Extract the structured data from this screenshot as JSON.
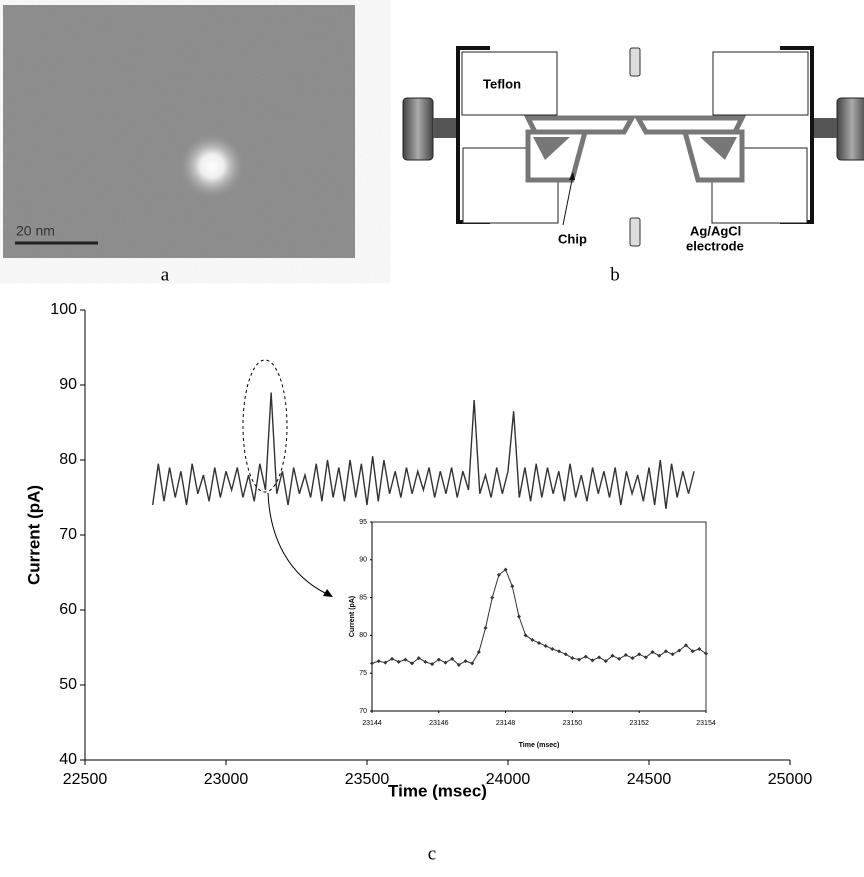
{
  "panels": {
    "image": {
      "scale_bar": "20 nm",
      "label": "a"
    },
    "diagram": {
      "teflon": "Teflon",
      "chip": "Chip",
      "electrode": [
        "Ag/AgCl",
        "electrode"
      ],
      "label": "b"
    },
    "chart_label": "c"
  },
  "chart_data": [
    {
      "type": "line",
      "color": "#333333",
      "xlabel": "Time (msec)",
      "ylabel": "Current (pA)",
      "xlim": [
        22500,
        25000
      ],
      "ylim": [
        40,
        100
      ],
      "xticks": [
        22500,
        23000,
        23500,
        24000,
        24500,
        25000
      ],
      "yticks": [
        40,
        50,
        60,
        70,
        80,
        90,
        100
      ],
      "x": [
        22740,
        22760,
        22780,
        22800,
        22820,
        22840,
        22860,
        22880,
        22900,
        22920,
        22940,
        22960,
        22980,
        23000,
        23020,
        23040,
        23060,
        23080,
        23100,
        23120,
        23140,
        23160,
        23180,
        23200,
        23220,
        23240,
        23260,
        23280,
        23300,
        23320,
        23340,
        23360,
        23380,
        23400,
        23420,
        23440,
        23460,
        23480,
        23500,
        23520,
        23540,
        23560,
        23580,
        23600,
        23620,
        23640,
        23660,
        23680,
        23700,
        23720,
        23740,
        23760,
        23780,
        23800,
        23820,
        23840,
        23860,
        23880,
        23900,
        23920,
        23940,
        23960,
        23980,
        24000,
        24020,
        24040,
        24060,
        24080,
        24100,
        24120,
        24140,
        24160,
        24180,
        24200,
        24220,
        24240,
        24260,
        24280,
        24300,
        24320,
        24340,
        24360,
        24380,
        24400,
        24420,
        24440,
        24460,
        24480,
        24500,
        24520,
        24540,
        24560,
        24580,
        24600,
        24620,
        24640,
        24660
      ],
      "values": [
        74,
        79.5,
        74.5,
        79,
        75,
        78.5,
        74,
        79.5,
        75.5,
        78,
        74.5,
        79,
        75,
        78.5,
        76,
        79,
        75,
        78,
        74.5,
        79.5,
        76,
        89,
        75.5,
        78.5,
        74,
        79,
        75.5,
        78,
        75,
        79.5,
        74.5,
        80,
        75,
        79,
        74.5,
        80,
        75,
        79.5,
        74,
        80.5,
        74.5,
        80,
        75.5,
        78.5,
        75,
        79,
        75.5,
        78.5,
        76,
        79,
        75,
        78.5,
        75.5,
        79,
        75,
        78.5,
        76,
        88,
        75.5,
        78,
        75,
        79,
        75.5,
        78.5,
        86.5,
        75,
        79,
        74.5,
        79.5,
        75,
        79,
        75.5,
        78.5,
        74.5,
        79.5,
        75,
        78,
        74.5,
        79,
        75.5,
        78.5,
        75,
        79,
        74,
        78.5,
        75.5,
        78,
        74.5,
        79,
        74,
        80,
        73.5,
        79.5,
        75,
        78.5,
        75.5,
        78.5
      ]
    },
    {
      "type": "line",
      "color": "#333333",
      "markers": true,
      "box": true,
      "xlabel": "Time (msec)",
      "ylabel": "Current (pA)",
      "xlim": [
        23144,
        23154
      ],
      "ylim": [
        70,
        95
      ],
      "xticks": [
        23144,
        23146,
        23148,
        23150,
        23152,
        23154
      ],
      "yticks": [
        70,
        75,
        80,
        85,
        90,
        95
      ],
      "x": [
        23144,
        23144.2,
        23144.4,
        23144.6,
        23144.8,
        23145,
        23145.2,
        23145.4,
        23145.6,
        23145.8,
        23146,
        23146.2,
        23146.4,
        23146.6,
        23146.8,
        23147,
        23147.2,
        23147.4,
        23147.6,
        23147.8,
        23148,
        23148.2,
        23148.4,
        23148.6,
        23148.8,
        23149,
        23149.2,
        23149.4,
        23149.6,
        23149.8,
        23150,
        23150.2,
        23150.4,
        23150.6,
        23150.8,
        23151,
        23151.2,
        23151.4,
        23151.6,
        23151.8,
        23152,
        23152.2,
        23152.4,
        23152.6,
        23152.8,
        23153,
        23153.2,
        23153.4,
        23153.6,
        23153.8,
        23154
      ],
      "values": [
        76.3,
        76.6,
        76.4,
        76.9,
        76.5,
        76.8,
        76.3,
        77,
        76.5,
        76.2,
        76.8,
        76.4,
        76.9,
        76.1,
        76.6,
        76.3,
        77.8,
        81,
        85,
        88,
        88.7,
        86.5,
        82.5,
        80,
        79.4,
        79,
        78.6,
        78.2,
        77.9,
        77.5,
        77,
        76.8,
        77.2,
        76.7,
        77.1,
        76.6,
        77.3,
        76.9,
        77.4,
        77,
        77.5,
        77.1,
        77.8,
        77.3,
        77.9,
        77.5,
        78,
        78.7,
        77.9,
        78.2,
        77.6
      ]
    }
  ]
}
